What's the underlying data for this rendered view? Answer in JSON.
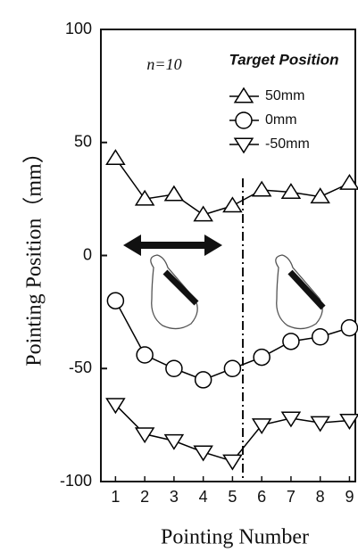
{
  "chart_data": {
    "type": "line",
    "y_label": "Pointing Position（mm）",
    "x_label": "Pointing Number",
    "annotation": "n=10",
    "legend_title": "Target Position",
    "x": [
      1,
      2,
      3,
      4,
      5,
      6,
      7,
      8,
      9
    ],
    "xlim": [
      0.5,
      9.2
    ],
    "xticks": [
      1,
      2,
      3,
      4,
      5,
      6,
      7,
      8,
      9
    ],
    "ylim": [
      -100,
      100
    ],
    "yticks": [
      -100,
      -50,
      0,
      50,
      100
    ],
    "series": [
      {
        "name": "50mm",
        "color": "#000000",
        "marker": "triangle-up",
        "values": [
          43,
          25,
          27,
          18,
          22,
          29,
          28,
          26,
          32
        ]
      },
      {
        "name": "0mm",
        "color": "#000000",
        "marker": "circle",
        "values": [
          -20,
          -44,
          -50,
          -55,
          -50,
          -45,
          -38,
          -36,
          -32
        ]
      },
      {
        "name": "-50mm",
        "color": "#000000",
        "marker": "triangle-down",
        "values": [
          -66,
          -79,
          -82,
          -87,
          -91,
          -75,
          -72,
          -74,
          -73
        ]
      }
    ]
  }
}
